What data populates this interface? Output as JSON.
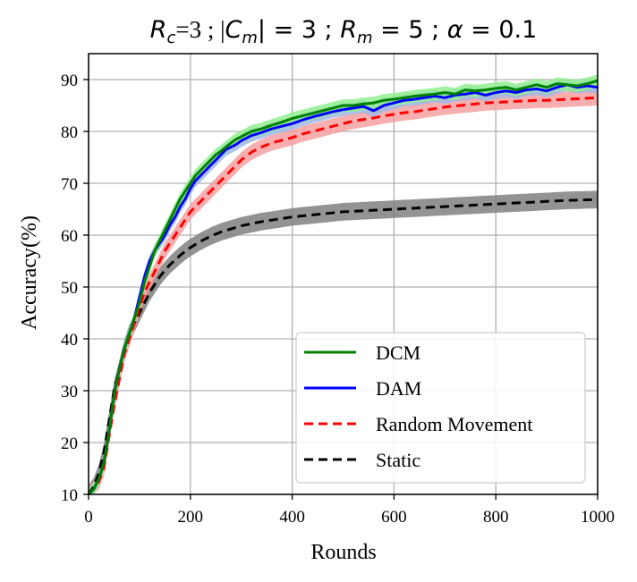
{
  "chart_data": {
    "type": "line",
    "title": "R_c=3 ; |C_m| = 3 ; R_m = 5 ; α = 0.1",
    "title_parts": {
      "r_c": "R",
      "r_c_sub": "c",
      "r_c_val": "=3 ; |",
      "c_m": "C",
      "c_m_sub": "m",
      "c_m_val": "| = 3 ; ",
      "r_m": "R",
      "r_m_sub": "m",
      "r_m_val": " = 5 ; ",
      "alpha": "α",
      "alpha_val": " = 0.1"
    },
    "xlabel": "Rounds",
    "ylabel": "Accuracy(%)",
    "xlim": [
      0,
      1000
    ],
    "ylim": [
      10,
      95
    ],
    "xticks": [
      0,
      200,
      400,
      600,
      800,
      1000
    ],
    "yticks": [
      10,
      20,
      30,
      40,
      50,
      60,
      70,
      80,
      90
    ],
    "grid": true,
    "legend_position": "lower-right",
    "x": [
      0,
      10,
      20,
      30,
      40,
      50,
      60,
      70,
      80,
      90,
      100,
      110,
      120,
      130,
      140,
      150,
      160,
      170,
      180,
      190,
      200,
      210,
      220,
      230,
      240,
      250,
      260,
      270,
      280,
      290,
      300,
      320,
      340,
      360,
      380,
      400,
      420,
      440,
      460,
      480,
      500,
      520,
      540,
      560,
      580,
      600,
      620,
      640,
      660,
      680,
      700,
      720,
      740,
      760,
      780,
      800,
      820,
      840,
      860,
      880,
      900,
      920,
      940,
      960,
      980,
      1000
    ],
    "series": [
      {
        "name": "DCM",
        "color": "#008000",
        "band_color": "#90ee90",
        "style": "solid",
        "band": 1.2,
        "values": [
          10,
          11,
          13,
          16,
          22,
          29,
          34,
          38,
          41,
          44,
          47,
          51,
          54,
          57,
          59,
          61,
          63,
          65,
          67,
          68.5,
          70,
          71.5,
          72.5,
          73.5,
          74.5,
          75.5,
          76.2,
          77,
          77.8,
          78.5,
          79,
          80,
          80.5,
          81.2,
          81.8,
          82.5,
          83,
          83.5,
          84,
          84.5,
          85,
          85,
          85.3,
          85.5,
          86,
          86.2,
          86.5,
          86.8,
          87,
          87.2,
          87.5,
          87.2,
          88,
          87.8,
          88,
          88.3,
          88.5,
          88,
          88.5,
          89,
          88.5,
          89.2,
          89,
          88.8,
          89.2,
          89.8
        ]
      },
      {
        "name": "DAM",
        "color": "#0000ff",
        "band_color": "#9fb8e6",
        "style": "solid",
        "band": 1.2,
        "values": [
          10,
          11,
          13,
          16,
          22,
          29,
          34,
          38,
          41,
          44,
          48,
          52,
          55,
          57,
          58.5,
          60,
          62,
          63.5,
          65.5,
          67,
          69,
          70.5,
          71.5,
          72.5,
          73.5,
          74.5,
          75.5,
          76.5,
          77,
          77.5,
          78.2,
          79.2,
          79.8,
          80.5,
          81,
          81.5,
          82.2,
          82.8,
          83.3,
          83.8,
          84.2,
          84.5,
          84.8,
          84,
          85,
          85.5,
          86,
          86.2,
          86.5,
          86.8,
          86.5,
          87,
          87.2,
          87.5,
          87,
          87.5,
          87.8,
          87.5,
          88,
          88.2,
          87.8,
          88.5,
          89,
          88.5,
          88.8,
          88.5
        ]
      },
      {
        "name": "Random Movement",
        "color": "#ff0000",
        "band_color": "#f4a0a0",
        "style": "dashed",
        "band": 1.5,
        "values": [
          10,
          11,
          12.5,
          15,
          21,
          27,
          32,
          37,
          40,
          43,
          46,
          49,
          51,
          53,
          55,
          57,
          58.5,
          60,
          61.5,
          63,
          64.5,
          65.5,
          66.5,
          67.5,
          68.5,
          69.5,
          70.5,
          71.5,
          72.5,
          73.5,
          74.5,
          76,
          77,
          77.8,
          78.3,
          78.8,
          79.5,
          80,
          80.5,
          81,
          81.5,
          82,
          82.3,
          82.6,
          83,
          83.3,
          83.6,
          83.8,
          84.1,
          84.4,
          84.7,
          84.9,
          85.1,
          85.3,
          85.5,
          85.6,
          85.7,
          85.8,
          85.9,
          86,
          86,
          86.1,
          86.2,
          86.3,
          86.4,
          86.5
        ]
      },
      {
        "name": "Static",
        "color": "#000000",
        "band_color": "#808080",
        "style": "dashed",
        "band": 1.7,
        "values": [
          10,
          11.5,
          14,
          18,
          24,
          30,
          34,
          38,
          41,
          43,
          45,
          47,
          49,
          50.5,
          52,
          53.2,
          54.3,
          55.2,
          56.1,
          56.9,
          57.6,
          58.2,
          58.8,
          59.3,
          59.8,
          60.2,
          60.6,
          60.9,
          61.2,
          61.5,
          61.8,
          62.2,
          62.6,
          62.9,
          63.2,
          63.5,
          63.7,
          63.9,
          64.1,
          64.3,
          64.5,
          64.6,
          64.7,
          64.8,
          64.9,
          65,
          65.1,
          65.2,
          65.3,
          65.4,
          65.5,
          65.6,
          65.7,
          65.8,
          65.9,
          66,
          66.1,
          66.2,
          66.3,
          66.4,
          66.5,
          66.6,
          66.7,
          66.75,
          66.8,
          66.85
        ]
      }
    ]
  }
}
